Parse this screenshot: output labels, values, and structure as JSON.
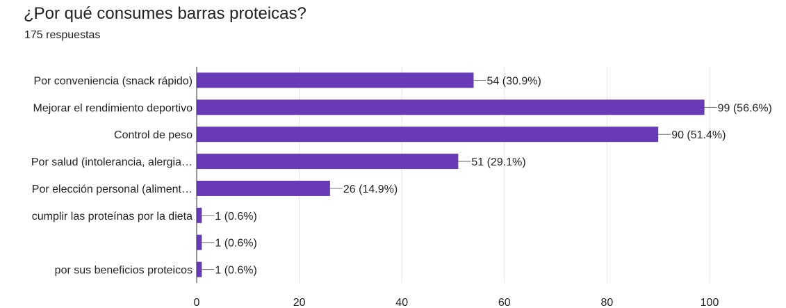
{
  "title": "¿Por qué consumes barras proteicas?",
  "subtitle": "175 respuestas",
  "colors": {
    "bar": "#673ab7",
    "grid": "#e6e6e6",
    "axis": "#333333",
    "leader": "#757575"
  },
  "chart_data": {
    "type": "bar",
    "orientation": "horizontal",
    "title": "¿Por qué consumes barras proteicas?",
    "total_responses": 175,
    "categories": [
      "Por conveniencia (snack rápido)",
      "Mejorar el rendimiento deportivo",
      "Control de peso",
      "Por salud (intolerancia, alergia…",
      "Por elección personal (aliment…",
      "cumplir las proteínas por la dieta",
      "",
      "por sus beneficios proteicos"
    ],
    "values": [
      54,
      99,
      90,
      51,
      26,
      1,
      1,
      1
    ],
    "data_labels": [
      "54 (30.9%)",
      "99 (56.6%)",
      "90 (51.4%)",
      "51 (29.1%)",
      "26 (14.9%)",
      "1 (0.6%)",
      "1 (0.6%)",
      "1 (0.6%)"
    ],
    "xlim": [
      0,
      100
    ],
    "xticks": [
      0,
      20,
      40,
      60,
      80,
      100
    ],
    "xlabel": "",
    "ylabel": "",
    "grid": true
  }
}
